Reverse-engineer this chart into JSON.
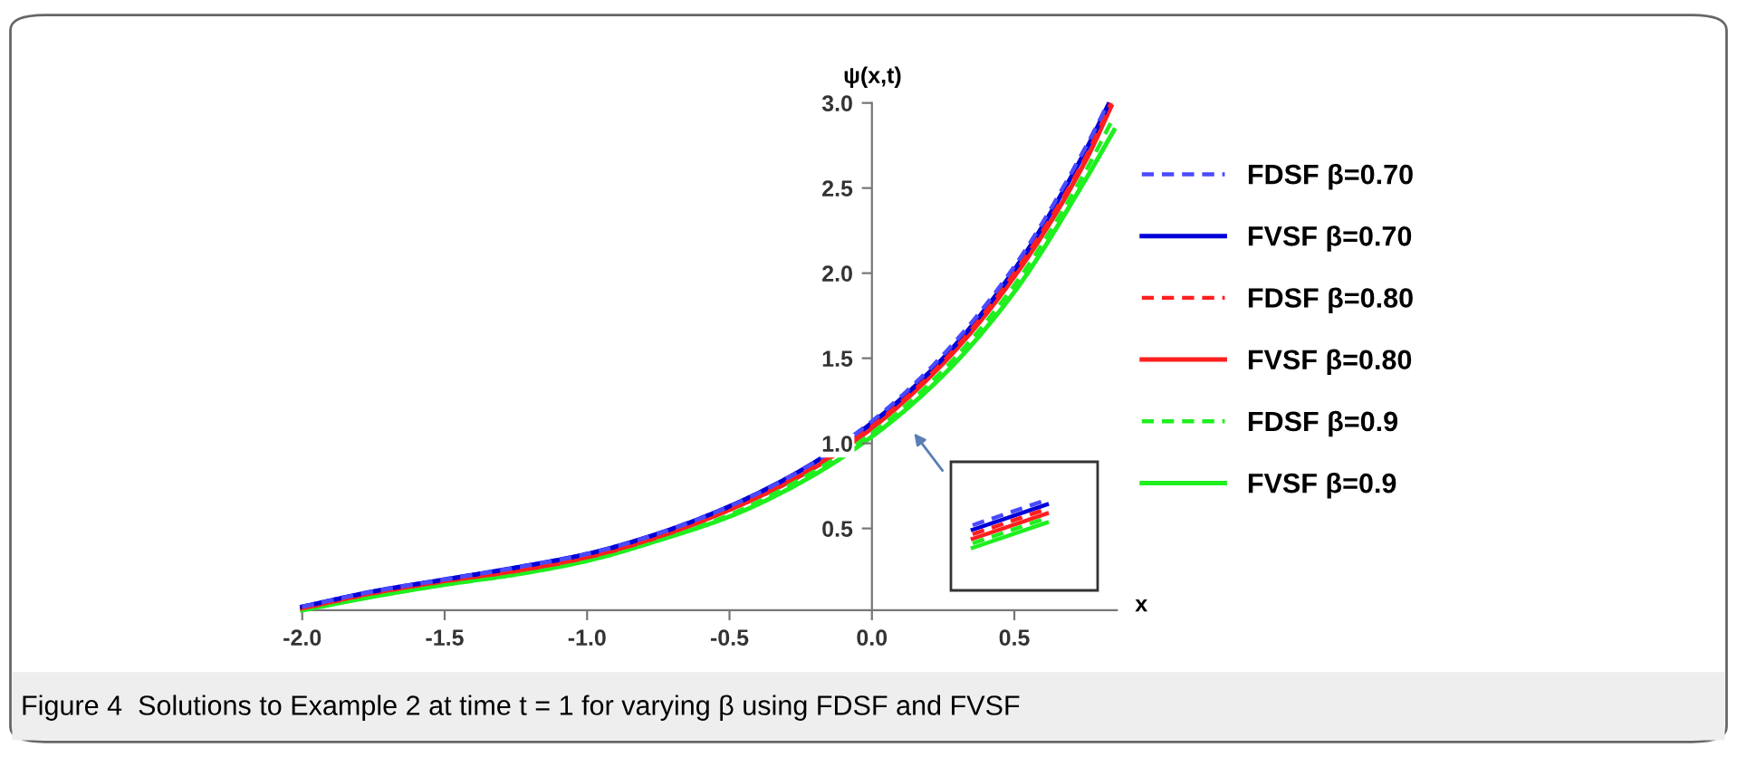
{
  "chart_data": {
    "type": "line",
    "xlabel": "x",
    "ylabel": "ψ(x,t)",
    "xlim": [
      -2.0,
      0.86
    ],
    "ylim": [
      0.02,
      3.0
    ],
    "xticks": [
      {
        "value": -2,
        "label": "-2.0"
      },
      {
        "value": -1.5,
        "label": "-1.5"
      },
      {
        "value": -1,
        "label": "-1.0"
      },
      {
        "value": -0.5,
        "label": "-0.5"
      },
      {
        "value": 0,
        "label": "0.0"
      },
      {
        "value": 0.5,
        "label": "0.5"
      }
    ],
    "yticks": [
      0.5,
      {
        "value": 1,
        "label": "1.0"
      },
      1.5,
      {
        "value": 2,
        "label": "2.0"
      },
      2.5,
      {
        "value": 3,
        "label": "3.0"
      }
    ],
    "grid": false,
    "legend": "right",
    "marker": "none",
    "series": [
      {
        "name": "FDSF β=0.70",
        "color": "#4a4aff",
        "line_style": "dashed",
        "x": [
          -2,
          -1.75,
          -1.5,
          -1.25,
          -1,
          -0.75,
          -0.5,
          -0.25,
          0,
          0.25,
          0.5,
          0.75,
          0.83
        ],
        "values": [
          0.04,
          0.13,
          0.2,
          0.27,
          0.35,
          0.47,
          0.63,
          0.84,
          1.13,
          1.52,
          2.04,
          2.74,
          3.0
        ]
      },
      {
        "name": "FVSF β=0.70",
        "color": "#0000d8",
        "line_style": "solid",
        "x": [
          -2,
          -1.75,
          -1.5,
          -1.25,
          -1,
          -0.75,
          -0.5,
          -0.25,
          0,
          0.25,
          0.5,
          0.75,
          0.83
        ],
        "values": [
          0.04,
          0.13,
          0.2,
          0.27,
          0.35,
          0.47,
          0.63,
          0.84,
          1.12,
          1.5,
          2.02,
          2.72,
          2.99
        ]
      },
      {
        "name": "FDSF β=0.80",
        "color": "#ff1f1f",
        "line_style": "dashed",
        "x": [
          -2,
          -1.75,
          -1.5,
          -1.25,
          -1,
          -0.75,
          -0.5,
          -0.25,
          0,
          0.25,
          0.5,
          0.75,
          0.84
        ],
        "values": [
          0.03,
          0.12,
          0.19,
          0.25,
          0.33,
          0.45,
          0.61,
          0.82,
          1.1,
          1.48,
          2.0,
          2.68,
          3.0
        ]
      },
      {
        "name": "FVSF β=0.80",
        "color": "#ff1f1f",
        "line_style": "solid",
        "x": [
          -2,
          -1.75,
          -1.5,
          -1.25,
          -1,
          -0.75,
          -0.5,
          -0.25,
          0,
          0.25,
          0.5,
          0.75,
          0.84
        ],
        "values": [
          0.03,
          0.12,
          0.19,
          0.25,
          0.33,
          0.45,
          0.61,
          0.81,
          1.09,
          1.47,
          1.98,
          2.66,
          2.98
        ]
      },
      {
        "name": "FDSF β=0.9",
        "color": "#1fef1f",
        "line_style": "dashed",
        "x": [
          -2,
          -1.75,
          -1.5,
          -1.25,
          -1,
          -0.75,
          -0.5,
          -0.25,
          0,
          0.25,
          0.5,
          0.75,
          0.85
        ],
        "values": [
          0.02,
          0.1,
          0.17,
          0.23,
          0.31,
          0.43,
          0.58,
          0.79,
          1.06,
          1.43,
          1.93,
          2.6,
          2.92
        ]
      },
      {
        "name": "FVSF β=0.9",
        "color": "#1fef1f",
        "line_style": "solid",
        "x": [
          -2,
          -1.75,
          -1.5,
          -1.25,
          -1,
          -0.75,
          -0.5,
          -0.25,
          0,
          0.25,
          0.5,
          0.75,
          0.85
        ],
        "values": [
          0.02,
          0.1,
          0.17,
          0.23,
          0.31,
          0.43,
          0.57,
          0.77,
          1.04,
          1.4,
          1.89,
          2.55,
          2.84
        ]
      }
    ],
    "annotations": [
      "Figure 4  Solutions to Example 2 at time t = 1 for varying β using FDSF and FVSF"
    ]
  }
}
